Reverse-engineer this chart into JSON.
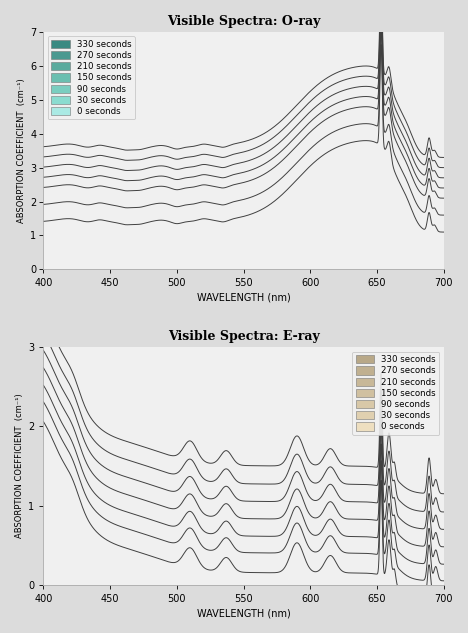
{
  "title_oray": "Visible Spectra: O-ray",
  "title_eray": "Visible Spectra: E-ray",
  "xlabel": "Wavelength (nm)",
  "xlim": [
    400,
    700
  ],
  "oray_ylim": [
    0,
    7
  ],
  "eray_ylim": [
    0,
    3
  ],
  "oray_yticks": [
    0,
    1,
    2,
    3,
    4,
    5,
    6,
    7
  ],
  "eray_yticks": [
    0,
    1,
    2,
    3
  ],
  "xticks": [
    400,
    450,
    500,
    550,
    600,
    650,
    700
  ],
  "legend_labels": [
    "330 seconds",
    "270 seconds",
    "210 seconds",
    "150 seconds",
    "90 seconds",
    "30 seconds",
    "0 seconds"
  ],
  "oray_legend_colors": [
    "#3a8a82",
    "#4a9990",
    "#5aab9e",
    "#6abfb0",
    "#7acec0",
    "#8adcd0",
    "#aaeae4"
  ],
  "eray_legend_colors": [
    "#b8a888",
    "#c0b090",
    "#c8b898",
    "#d0c0a0",
    "#d8c8a8",
    "#e0d0b0",
    "#eedfc0"
  ],
  "background_color": "#dcdcdc",
  "plot_bg_color": "#f0f0f0",
  "line_color": "#404040",
  "line_width": 0.7,
  "offsets_oray": [
    2.2,
    1.9,
    1.6,
    1.3,
    1.0,
    0.5,
    0.0
  ],
  "offsets_eray": [
    1.35,
    1.12,
    0.9,
    0.68,
    0.46,
    0.25,
    0.0
  ]
}
